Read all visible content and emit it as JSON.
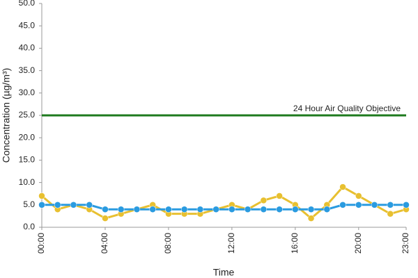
{
  "chart_data": {
    "type": "line",
    "x_label": "Time",
    "y_label": "Concentration (µg/m³)",
    "categories": [
      "00:00",
      null,
      null,
      null,
      "04:00",
      null,
      null,
      null,
      "08:00",
      null,
      null,
      null,
      "12:00",
      null,
      null,
      null,
      "16:00",
      null,
      null,
      null,
      "20:00",
      null,
      null,
      "23:00"
    ],
    "series": [
      {
        "color": "#e8c030",
        "values": [
          7,
          4,
          5,
          4,
          2,
          3,
          4,
          5,
          3,
          3,
          3,
          4,
          5,
          4,
          6,
          7,
          5,
          2,
          5,
          9,
          7,
          5,
          3,
          4
        ]
      },
      {
        "color": "#2a9be0",
        "values": [
          5,
          5,
          5,
          5,
          4,
          4,
          4,
          4,
          4,
          4,
          4,
          4,
          4,
          4,
          4,
          4,
          4,
          4,
          4,
          5,
          5,
          5,
          5,
          5
        ]
      }
    ],
    "reference_line": {
      "value": 25,
      "label": "24 Hour Air Quality Objective",
      "color": "#1e7a1e"
    },
    "ylim": [
      0,
      50
    ],
    "yticks": [
      {
        "value": 0,
        "label": "0.0"
      },
      {
        "value": 5,
        "label": "5.0"
      },
      {
        "value": 10,
        "label": "10.0"
      },
      {
        "value": 15,
        "label": "15.0"
      },
      {
        "value": 20,
        "label": "20.0"
      },
      {
        "value": 25,
        "label": "25.0"
      },
      {
        "value": 30,
        "label": "30.0"
      },
      {
        "value": 35,
        "label": "35.0"
      },
      {
        "value": 40,
        "label": "40.0"
      },
      {
        "value": 45,
        "label": "45.0"
      },
      {
        "value": 50,
        "label": "50.0"
      }
    ],
    "grid": false
  }
}
